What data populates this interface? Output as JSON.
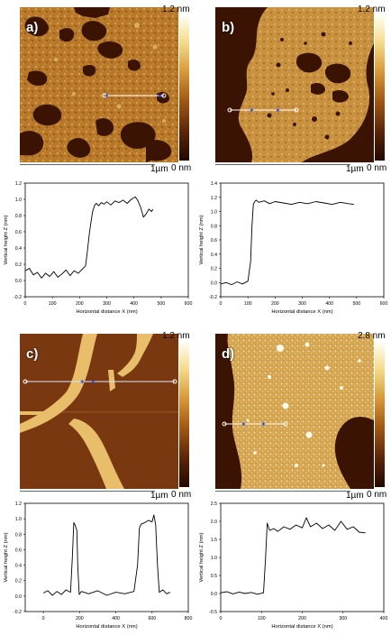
{
  "panels": [
    {
      "label": "a)",
      "cbar_top": "1.2 nm",
      "cbar_bottom": "0 nm",
      "scalebar": "1µm"
    },
    {
      "label": "b)",
      "cbar_top": "1.2 nm",
      "cbar_bottom": "0 nm",
      "scalebar": "1µm"
    },
    {
      "label": "c)",
      "cbar_top": "1.2 nm",
      "cbar_bottom": "0 nm",
      "scalebar": "1µm"
    },
    {
      "label": "d)",
      "cbar_top": "2.8 nm",
      "cbar_bottom": "0 nm",
      "scalebar": "1µm"
    }
  ],
  "colors": {
    "afm_dark": "#3a1303",
    "afm_mid": "#a8661c",
    "afm_light": "#e8be6a",
    "profile_line": "#ffffff",
    "cursor": "#2b45d6"
  },
  "chart_data": [
    {
      "type": "line",
      "xlabel": "Horizontal distance X (nm)",
      "ylabel": "Vertical height Z (nm)",
      "xlim": [
        0,
        600
      ],
      "ylim": [
        -0.2,
        1.2
      ],
      "xticks": [
        0,
        100,
        200,
        300,
        400,
        500,
        600
      ],
      "yticks": [
        -0.2,
        0.0,
        0.2,
        0.4,
        0.6,
        0.8,
        1.0,
        1.2
      ],
      "x": [
        0,
        15,
        30,
        45,
        60,
        75,
        90,
        105,
        120,
        135,
        150,
        165,
        180,
        195,
        210,
        222,
        230,
        236,
        242,
        248,
        256,
        262,
        270,
        280,
        290,
        300,
        315,
        330,
        345,
        360,
        375,
        390,
        405,
        415,
        425,
        435,
        445,
        455,
        465,
        470
      ],
      "y": [
        0.12,
        0.15,
        0.07,
        0.1,
        0.03,
        0.09,
        0.05,
        0.11,
        0.04,
        0.08,
        0.13,
        0.06,
        0.12,
        0.09,
        0.14,
        0.18,
        0.4,
        0.58,
        0.72,
        0.85,
        0.93,
        0.95,
        0.92,
        0.96,
        0.94,
        0.97,
        0.93,
        0.98,
        0.96,
        0.99,
        0.95,
        1.0,
        1.03,
        0.98,
        0.9,
        0.78,
        0.82,
        0.88,
        0.85,
        0.88
      ]
    },
    {
      "type": "line",
      "xlabel": "Horizontal distance X (nm)",
      "ylabel": "Vertical height Z (nm)",
      "xlim": [
        0,
        600
      ],
      "ylim": [
        -0.2,
        1.4
      ],
      "xticks": [
        0,
        100,
        200,
        300,
        400,
        500,
        600
      ],
      "yticks": [
        -0.2,
        0.0,
        0.2,
        0.4,
        0.6,
        0.8,
        1.0,
        1.2,
        1.4
      ],
      "x": [
        0,
        20,
        40,
        60,
        80,
        100,
        110,
        115,
        120,
        125,
        130,
        140,
        160,
        180,
        200,
        230,
        260,
        290,
        320,
        350,
        380,
        410,
        440,
        470,
        490
      ],
      "y": [
        -0.02,
        0.0,
        -0.03,
        0.01,
        -0.02,
        0.02,
        0.3,
        0.8,
        1.1,
        1.14,
        1.16,
        1.13,
        1.15,
        1.11,
        1.14,
        1.12,
        1.1,
        1.13,
        1.11,
        1.14,
        1.12,
        1.1,
        1.13,
        1.11,
        1.1
      ]
    },
    {
      "type": "line",
      "xlabel": "Horizontal distance X (nm)",
      "ylabel": "Vertical height Z (nm)",
      "xlim": [
        -100,
        800
      ],
      "ylim": [
        -0.2,
        1.2
      ],
      "xticks": [
        0,
        200,
        400,
        600,
        800
      ],
      "yticks": [
        -0.2,
        0.0,
        0.2,
        0.4,
        0.6,
        0.8,
        1.0,
        1.2
      ],
      "x": [
        0,
        25,
        50,
        75,
        100,
        125,
        150,
        160,
        168,
        175,
        185,
        190,
        198,
        210,
        250,
        300,
        350,
        400,
        450,
        500,
        520,
        530,
        540,
        560,
        580,
        600,
        610,
        620,
        630,
        640,
        660,
        680,
        700
      ],
      "y": [
        0.04,
        0.07,
        0.01,
        0.06,
        0.02,
        0.08,
        0.05,
        0.5,
        0.95,
        0.92,
        0.85,
        0.4,
        0.02,
        0.06,
        0.03,
        0.07,
        0.01,
        0.05,
        0.03,
        0.06,
        0.4,
        0.88,
        0.93,
        0.95,
        0.98,
        0.96,
        1.05,
        0.92,
        0.4,
        0.05,
        0.08,
        0.03,
        0.05
      ]
    },
    {
      "type": "line",
      "xlabel": "Horizontal distance X (nm)",
      "ylabel": "Vertical height Z (nm)",
      "xlim": [
        0,
        400
      ],
      "ylim": [
        -0.5,
        2.5
      ],
      "xticks": [
        0,
        100,
        200,
        300,
        400
      ],
      "yticks": [
        -0.5,
        0.0,
        0.5,
        1.0,
        1.5,
        2.0,
        2.5
      ],
      "x": [
        0,
        15,
        30,
        45,
        60,
        75,
        90,
        105,
        110,
        114,
        120,
        130,
        140,
        155,
        170,
        185,
        200,
        210,
        220,
        235,
        250,
        265,
        280,
        295,
        310,
        325,
        340,
        355
      ],
      "y": [
        0.02,
        0.05,
        -0.01,
        0.04,
        0.0,
        0.03,
        -0.02,
        0.02,
        1.0,
        1.95,
        1.75,
        1.8,
        1.72,
        1.85,
        1.78,
        1.9,
        1.82,
        2.1,
        1.85,
        1.95,
        1.8,
        1.9,
        1.75,
        2.0,
        1.78,
        1.85,
        1.7,
        1.68
      ]
    }
  ]
}
